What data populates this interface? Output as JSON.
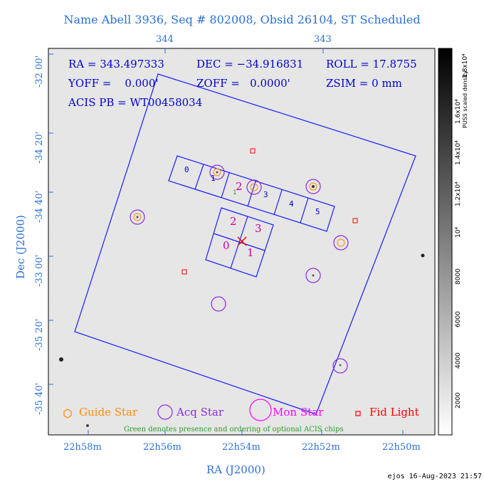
{
  "title": "Name Abell 3936, Seq # 802008, Obsid 26104, ST Scheduled",
  "axes": {
    "x_label": "RA (J2000)",
    "y_label": "Dec (J2000)",
    "x_ticks_bottom": [
      "22h58m",
      "22h56m",
      "22h54m",
      "22h52m",
      "22h50m"
    ],
    "x_ticks_top": [
      "344",
      "343"
    ],
    "y_ticks": [
      "-32 00'",
      "-34 20'",
      "-34 40'",
      "-33 00'",
      "-35 20'",
      "-35 40'"
    ]
  },
  "info": {
    "ra": "RA = 343.497333",
    "dec": "DEC = −34.916831",
    "roll": "ROLL = 17.8755",
    "yoff": "YOFF =    0.000'",
    "zoff": "ZOFF =   0.0000'",
    "zsim": "ZSIM = 0 mm",
    "acis": "ACIS PB = WT00458034"
  },
  "chips": {
    "i": [
      "0",
      "1",
      "2",
      "3"
    ],
    "s": [
      "0",
      "1",
      "2",
      "3",
      "4",
      "5"
    ],
    "optional": "1"
  },
  "legend": {
    "guide": "Guide Star",
    "acq": "Acq Star",
    "mon": "Mon Star",
    "fid": "Fid Light"
  },
  "note": "Green denotes presence and ordering of optional ACIS chips",
  "colorbar": {
    "label": "PUSS scaled density",
    "ticks": [
      "2000",
      "4000",
      "6000",
      "8000",
      "10⁴",
      "1.2x10⁴",
      "1.4x10⁴",
      "1.6x10⁴",
      "1.8x10⁴"
    ]
  },
  "footer": "ejos 16-Aug-2023 21:57",
  "colors": {
    "axis_text": "#2a6fd6",
    "field": "#1a1aff",
    "acq": "#8a2be2",
    "guide": "#ff8c00",
    "fid": "#ff0000",
    "mon": "#ff00ff",
    "optional": "#2a9d2a"
  }
}
